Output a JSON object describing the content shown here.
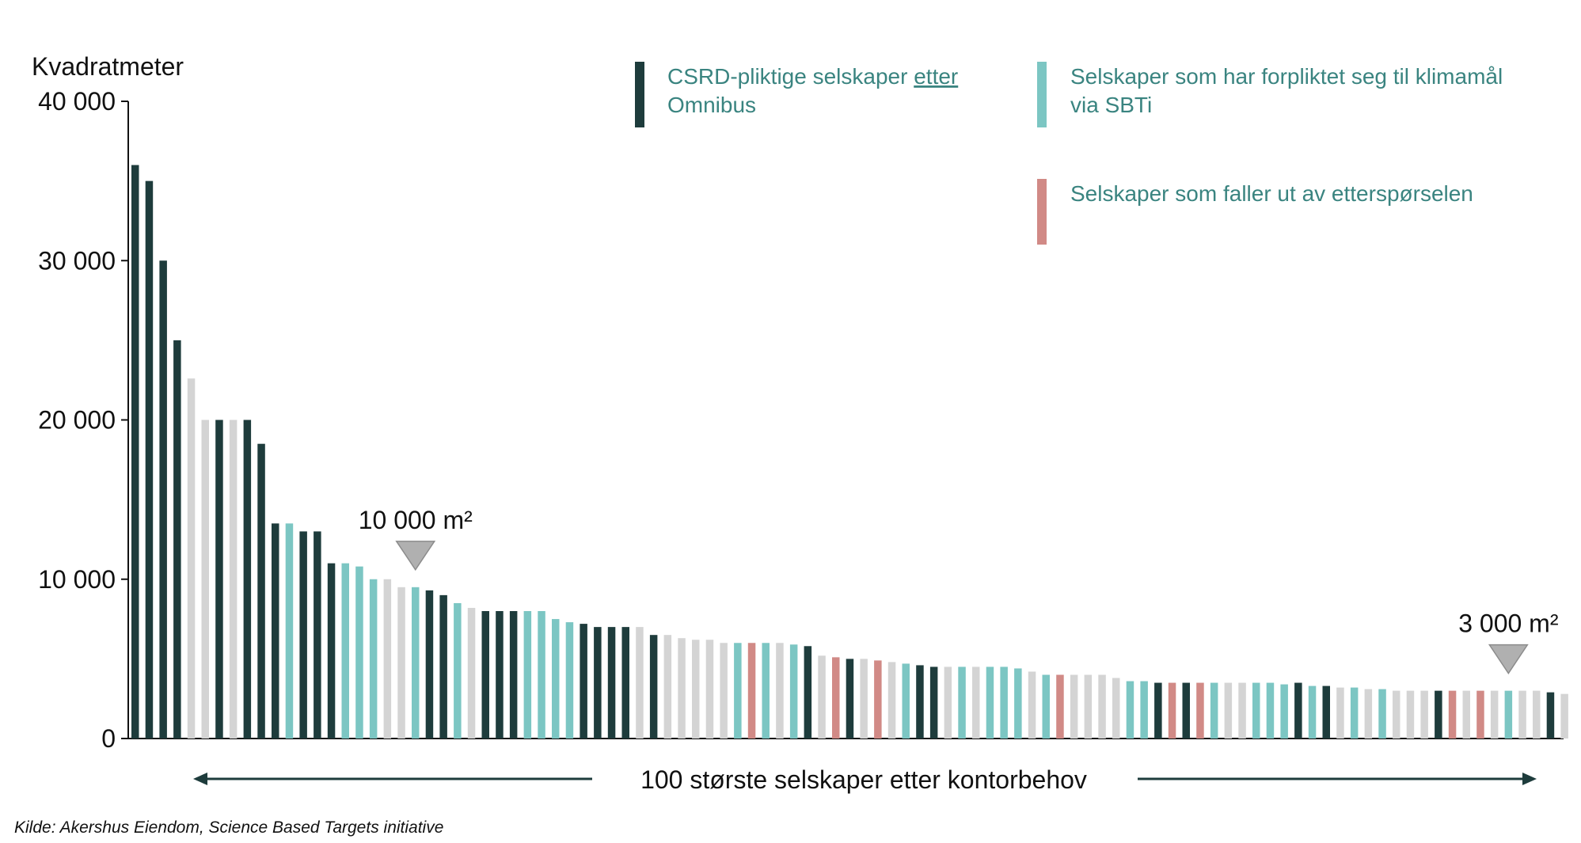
{
  "chart_data": {
    "type": "bar",
    "ylabel": "Kvadratmeter",
    "xlabel": "100 største selskaper etter kontorbehov",
    "ylim": [
      0,
      40000
    ],
    "yticks": [
      {
        "value": 0,
        "label": "0"
      },
      {
        "value": 10000,
        "label": "10 000"
      },
      {
        "value": 20000,
        "label": "20 000"
      },
      {
        "value": 30000,
        "label": "30 000"
      },
      {
        "value": 40000,
        "label": "40 000"
      }
    ],
    "legend": [
      {
        "key": "csrd",
        "text_before": "CSRD-pliktige selskaper ",
        "text_underlined": "etter",
        "text_after": "Omnibus",
        "color": "#1e3c3c"
      },
      {
        "key": "sbti",
        "text_line1": "Selskaper som har forpliktet seg til klimamål",
        "text_line2": "via SBTi",
        "color": "#7cc6c3"
      },
      {
        "key": "out",
        "text_line1": "Selskaper som faller ut av etterspørselen",
        "color": "#d18a86"
      }
    ],
    "category_colors": {
      "csrd": "#1e3c3c",
      "sbti": "#7cc6c3",
      "out": "#d18a86",
      "other": "#d4d4d4"
    },
    "annotations": [
      {
        "text": "10 000 m²",
        "bar_index": 20
      },
      {
        "text": "3 000 m²",
        "bar_index": 98
      }
    ],
    "values": [
      36000,
      35000,
      30000,
      25000,
      22600,
      20000,
      20000,
      20000,
      20000,
      18500,
      13500,
      13500,
      13000,
      13000,
      11000,
      11000,
      10800,
      10000,
      10000,
      9500,
      9500,
      9300,
      9000,
      8500,
      8200,
      8000,
      8000,
      8000,
      8000,
      8000,
      7500,
      7300,
      7200,
      7000,
      7000,
      7000,
      7000,
      6500,
      6500,
      6300,
      6200,
      6200,
      6000,
      6000,
      6000,
      6000,
      6000,
      5900,
      5800,
      5200,
      5100,
      5000,
      5000,
      4900,
      4800,
      4700,
      4600,
      4500,
      4500,
      4500,
      4500,
      4500,
      4500,
      4400,
      4200,
      4000,
      4000,
      4000,
      4000,
      4000,
      3800,
      3600,
      3600,
      3500,
      3500,
      3500,
      3500,
      3500,
      3500,
      3500,
      3500,
      3500,
      3400,
      3500,
      3300,
      3300,
      3200,
      3200,
      3100,
      3100,
      3000,
      3000,
      3000,
      3000,
      3000,
      3000,
      3000,
      3000,
      3000,
      3000,
      3000,
      2900,
      2800
    ],
    "categories": [
      "csrd",
      "csrd",
      "csrd",
      "csrd",
      "other",
      "other",
      "csrd",
      "other",
      "csrd",
      "csrd",
      "csrd",
      "sbti",
      "csrd",
      "csrd",
      "csrd",
      "sbti",
      "sbti",
      "sbti",
      "other",
      "other",
      "sbti",
      "csrd",
      "csrd",
      "sbti",
      "other",
      "csrd",
      "csrd",
      "csrd",
      "sbti",
      "sbti",
      "sbti",
      "sbti",
      "csrd",
      "csrd",
      "csrd",
      "csrd",
      "other",
      "csrd",
      "other",
      "other",
      "other",
      "other",
      "other",
      "sbti",
      "out",
      "sbti",
      "other",
      "sbti",
      "csrd",
      "other",
      "out",
      "csrd",
      "other",
      "out",
      "other",
      "sbti",
      "csrd",
      "csrd",
      "other",
      "sbti",
      "other",
      "sbti",
      "sbti",
      "sbti",
      "other",
      "sbti",
      "out",
      "other",
      "other",
      "other",
      "other",
      "sbti",
      "sbti",
      "csrd",
      "out",
      "csrd",
      "out",
      "sbti",
      "other",
      "other",
      "sbti",
      "sbti",
      "sbti",
      "csrd",
      "sbti",
      "csrd",
      "other",
      "sbti",
      "other",
      "sbti",
      "other",
      "other",
      "other",
      "csrd",
      "out",
      "other",
      "out",
      "other",
      "sbti",
      "other",
      "other",
      "csrd",
      "other"
    ]
  },
  "source_note": "Kilde: Akershus Eiendom, Science Based Targets initiative"
}
